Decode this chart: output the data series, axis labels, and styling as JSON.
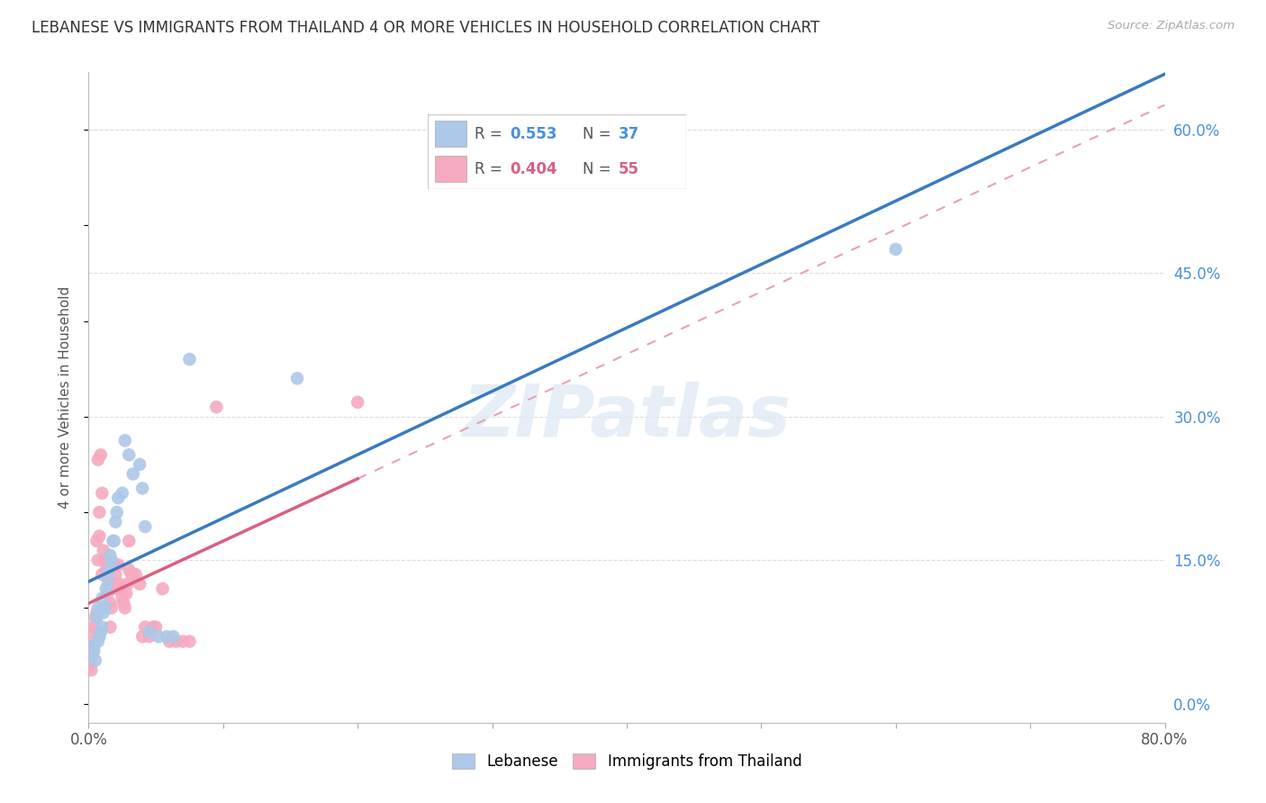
{
  "title": "LEBANESE VS IMMIGRANTS FROM THAILAND 4 OR MORE VEHICLES IN HOUSEHOLD CORRELATION CHART",
  "source": "Source: ZipAtlas.com",
  "ylabel": "4 or more Vehicles in Household",
  "ytick_values": [
    0.0,
    0.15,
    0.3,
    0.45,
    0.6
  ],
  "xlim": [
    0.0,
    0.8
  ],
  "ylim": [
    -0.02,
    0.66
  ],
  "legend_r1": "0.553",
  "legend_n1": "37",
  "legend_r2": "0.404",
  "legend_n2": "55",
  "watermark": "ZIPatlas",
  "blue_color": "#adc8e8",
  "pink_color": "#f5aabf",
  "blue_line_color": "#3a7abf",
  "pink_line_color": "#d96080",
  "pink_dash_color": "#e8a0b8",
  "blue_scatter": [
    [
      0.002,
      0.05
    ],
    [
      0.003,
      0.06
    ],
    [
      0.004,
      0.055
    ],
    [
      0.005,
      0.045
    ],
    [
      0.006,
      0.09
    ],
    [
      0.007,
      0.065
    ],
    [
      0.007,
      0.1
    ],
    [
      0.008,
      0.07
    ],
    [
      0.009,
      0.075
    ],
    [
      0.01,
      0.08
    ],
    [
      0.01,
      0.11
    ],
    [
      0.011,
      0.095
    ],
    [
      0.012,
      0.1
    ],
    [
      0.013,
      0.12
    ],
    [
      0.014,
      0.13
    ],
    [
      0.015,
      0.14
    ],
    [
      0.016,
      0.155
    ],
    [
      0.017,
      0.15
    ],
    [
      0.018,
      0.17
    ],
    [
      0.019,
      0.17
    ],
    [
      0.02,
      0.19
    ],
    [
      0.021,
      0.2
    ],
    [
      0.022,
      0.215
    ],
    [
      0.025,
      0.22
    ],
    [
      0.027,
      0.275
    ],
    [
      0.03,
      0.26
    ],
    [
      0.033,
      0.24
    ],
    [
      0.038,
      0.25
    ],
    [
      0.04,
      0.225
    ],
    [
      0.042,
      0.185
    ],
    [
      0.045,
      0.075
    ],
    [
      0.052,
      0.07
    ],
    [
      0.058,
      0.07
    ],
    [
      0.063,
      0.07
    ],
    [
      0.075,
      0.36
    ],
    [
      0.155,
      0.34
    ],
    [
      0.6,
      0.475
    ]
  ],
  "pink_scatter": [
    [
      0.001,
      0.04
    ],
    [
      0.002,
      0.035
    ],
    [
      0.002,
      0.05
    ],
    [
      0.003,
      0.055
    ],
    [
      0.003,
      0.065
    ],
    [
      0.004,
      0.06
    ],
    [
      0.004,
      0.08
    ],
    [
      0.005,
      0.075
    ],
    [
      0.005,
      0.09
    ],
    [
      0.006,
      0.095
    ],
    [
      0.006,
      0.17
    ],
    [
      0.007,
      0.15
    ],
    [
      0.007,
      0.255
    ],
    [
      0.008,
      0.2
    ],
    [
      0.008,
      0.175
    ],
    [
      0.009,
      0.26
    ],
    [
      0.01,
      0.135
    ],
    [
      0.01,
      0.22
    ],
    [
      0.011,
      0.16
    ],
    [
      0.012,
      0.15
    ],
    [
      0.013,
      0.14
    ],
    [
      0.014,
      0.115
    ],
    [
      0.015,
      0.125
    ],
    [
      0.016,
      0.105
    ],
    [
      0.016,
      0.08
    ],
    [
      0.017,
      0.1
    ],
    [
      0.018,
      0.125
    ],
    [
      0.019,
      0.145
    ],
    [
      0.02,
      0.135
    ],
    [
      0.021,
      0.12
    ],
    [
      0.022,
      0.145
    ],
    [
      0.023,
      0.125
    ],
    [
      0.024,
      0.12
    ],
    [
      0.025,
      0.11
    ],
    [
      0.026,
      0.105
    ],
    [
      0.027,
      0.1
    ],
    [
      0.028,
      0.115
    ],
    [
      0.029,
      0.125
    ],
    [
      0.03,
      0.14
    ],
    [
      0.03,
      0.17
    ],
    [
      0.032,
      0.135
    ],
    [
      0.035,
      0.135
    ],
    [
      0.038,
      0.125
    ],
    [
      0.04,
      0.07
    ],
    [
      0.042,
      0.08
    ],
    [
      0.045,
      0.07
    ],
    [
      0.048,
      0.08
    ],
    [
      0.05,
      0.08
    ],
    [
      0.055,
      0.12
    ],
    [
      0.06,
      0.065
    ],
    [
      0.065,
      0.065
    ],
    [
      0.07,
      0.065
    ],
    [
      0.075,
      0.065
    ],
    [
      0.095,
      0.31
    ],
    [
      0.2,
      0.315
    ]
  ]
}
